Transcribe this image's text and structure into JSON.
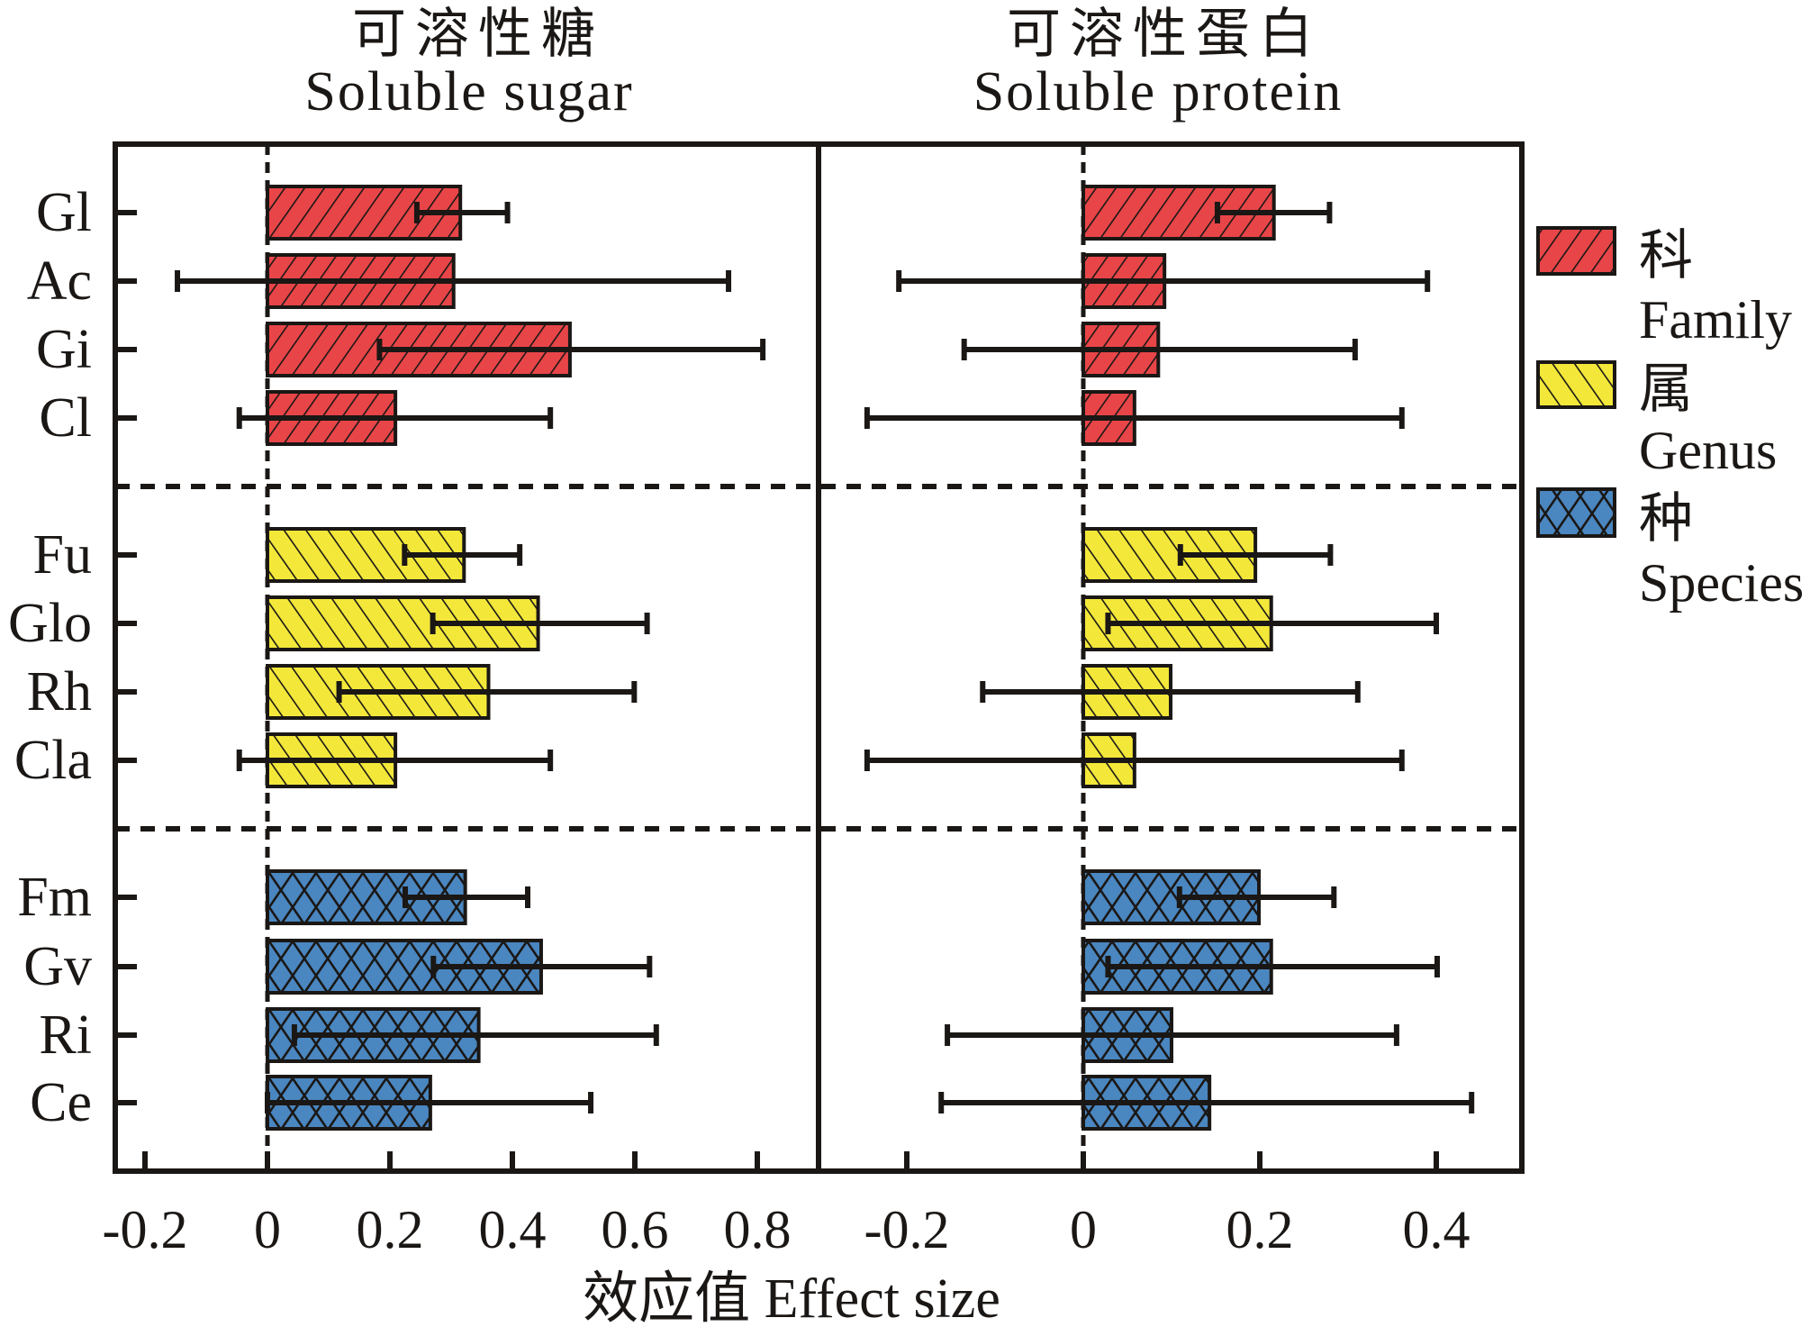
{
  "chart_data": {
    "type": "bar",
    "orientation": "horizontal",
    "xlabel": "效应值 Effect size",
    "categories": [
      "Gl",
      "Ac",
      "Gi",
      "Cl",
      "Fu",
      "Glo",
      "Rh",
      "Cla",
      "Fm",
      "Gv",
      "Ri",
      "Ce"
    ],
    "groups": [
      {
        "key": "family",
        "categories": [
          "Gl",
          "Ac",
          "Gi",
          "Cl"
        ]
      },
      {
        "key": "genus",
        "categories": [
          "Fu",
          "Glo",
          "Rh",
          "Cla"
        ]
      },
      {
        "key": "species",
        "categories": [
          "Fm",
          "Gv",
          "Ri",
          "Ce"
        ]
      }
    ],
    "legend": {
      "placement": "right",
      "entries": [
        {
          "key": "family",
          "label_cn": "科",
          "label_en": "Family",
          "color": "#e84548",
          "pattern": "diagonal-up"
        },
        {
          "key": "genus",
          "label_cn": "属",
          "label_en": "Genus",
          "color": "#f3e83a",
          "pattern": "diagonal-down"
        },
        {
          "key": "species",
          "label_cn": "种",
          "label_en": "Species",
          "color": "#4a86bf",
          "pattern": "crosshatch"
        }
      ]
    },
    "panels": [
      {
        "key": "sugar",
        "title_cn": "可溶性糖",
        "title_en": "Soluble sugar",
        "xlim": [
          -0.25,
          0.9
        ],
        "xticks": [
          -0.2,
          0,
          0.2,
          0.4,
          0.6,
          0.8
        ],
        "xtick_labels": [
          "-0.2",
          "0",
          "0.2",
          "0.4",
          "0.6",
          "0.8"
        ],
        "values": [
          0.315,
          0.304,
          0.494,
          0.209,
          0.321,
          0.442,
          0.361,
          0.209,
          0.323,
          0.447,
          0.345,
          0.266
        ],
        "ci_low": [
          0.244,
          -0.147,
          0.183,
          -0.046,
          0.224,
          0.27,
          0.117,
          -0.046,
          0.225,
          0.271,
          0.044,
          0.0
        ],
        "ci_high": [
          0.392,
          0.753,
          0.809,
          0.462,
          0.412,
          0.62,
          0.599,
          0.462,
          0.425,
          0.624,
          0.635,
          0.528
        ]
      },
      {
        "key": "protein",
        "title_cn": "可溶性蛋白",
        "title_en": "Soluble protein",
        "xlim": [
          -0.3,
          0.5
        ],
        "xticks": [
          -0.2,
          0,
          0.2,
          0.4
        ],
        "xtick_labels": [
          "-0.2",
          "0",
          "0.2",
          "0.4"
        ],
        "values": [
          0.216,
          0.092,
          0.085,
          0.058,
          0.195,
          0.213,
          0.099,
          0.058,
          0.199,
          0.213,
          0.1,
          0.143
        ],
        "ci_low": [
          0.152,
          -0.209,
          -0.135,
          -0.245,
          0.11,
          0.028,
          -0.114,
          -0.245,
          0.109,
          0.028,
          -0.154,
          -0.161
        ],
        "ci_high": [
          0.279,
          0.39,
          0.308,
          0.361,
          0.28,
          0.4,
          0.311,
          0.361,
          0.284,
          0.401,
          0.355,
          0.44
        ]
      }
    ]
  }
}
